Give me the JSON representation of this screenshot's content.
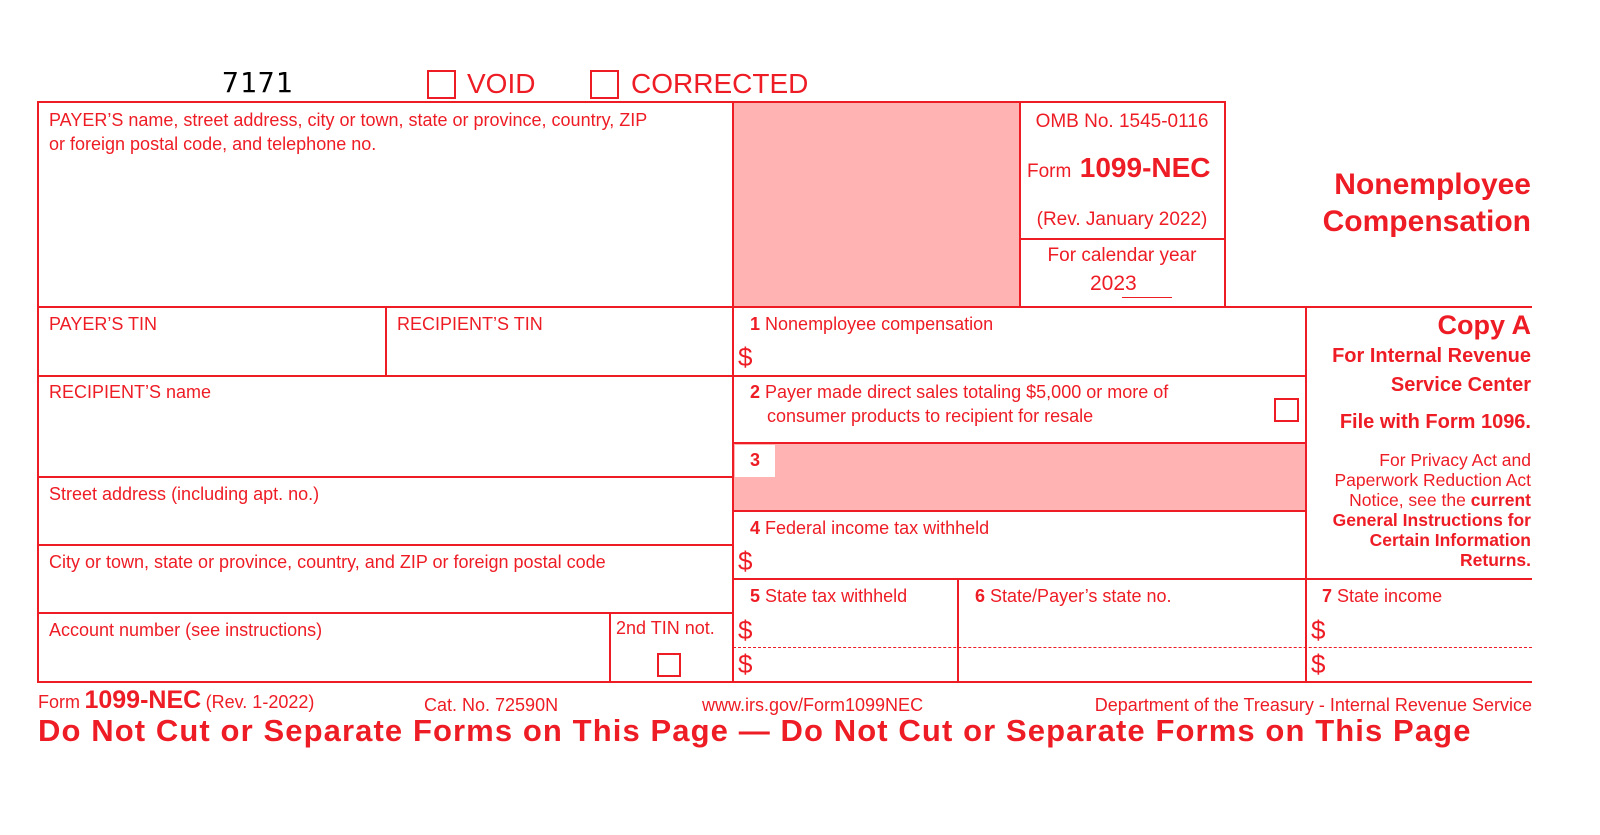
{
  "form_number_code": "7171",
  "void_label": "VOID",
  "corrected_label": "CORRECTED",
  "payer_name_label_1": "PAYER’S name, street address, city or town, state or province, country, ZIP",
  "payer_name_label_2": "or foreign postal code, and telephone no.",
  "omb": "OMB No. 1545-0116",
  "form_word": "Form",
  "form_name": "1099-NEC",
  "rev": "(Rev. January 2022)",
  "calendar_year_label": "For calendar year",
  "calendar_year": "2023",
  "title_1": "Nonemployee",
  "title_2": "Compensation",
  "payer_tin": "PAYER’S TIN",
  "recipient_tin": "RECIPIENT’S TIN",
  "recipient_name": "RECIPIENT’S name",
  "street_address": "Street address (including apt. no.)",
  "city": "City or town, state or province, country, and ZIP or foreign postal code",
  "account_number": "Account number (see instructions)",
  "second_tin": "2nd TIN not.",
  "currency": "$",
  "boxes": {
    "b1_num": "1",
    "b1_label": "Nonemployee compensation",
    "b2_num": "2",
    "b2_label_1": "Payer made direct sales totaling $5,000 or more of",
    "b2_label_2": "consumer products to recipient for resale",
    "b3_num": "3",
    "b4_num": "4",
    "b4_label": "Federal income tax withheld",
    "b5_num": "5",
    "b5_label": "State tax withheld",
    "b6_num": "6",
    "b6_label": "State/Payer’s state no.",
    "b7_num": "7",
    "b7_label": "State income"
  },
  "copy": {
    "title": "Copy A",
    "line1": "For Internal Revenue",
    "line2": "Service Center",
    "file_with": "File with Form 1096.",
    "privacy_1": "For Privacy Act and",
    "privacy_2": "Paperwork Reduction Act",
    "privacy_3a": "Notice, see the ",
    "privacy_3b": "current",
    "privacy_4": "General Instructions for",
    "privacy_5": "Certain Information",
    "privacy_6": "Returns."
  },
  "footer": {
    "form_word": "Form",
    "form_name": "1099-NEC",
    "rev": "(Rev. 1-2022)",
    "cat": "Cat. No. 72590N",
    "url": "www.irs.gov/Form1099NEC",
    "dept": "Department of the Treasury - Internal Revenue Service",
    "warning": "Do Not Cut or Separate Forms on This Page — Do Not Cut or Separate Forms on This Page"
  },
  "colors": {
    "ink": "#ee1c25",
    "shade": "#ffb3b3"
  }
}
